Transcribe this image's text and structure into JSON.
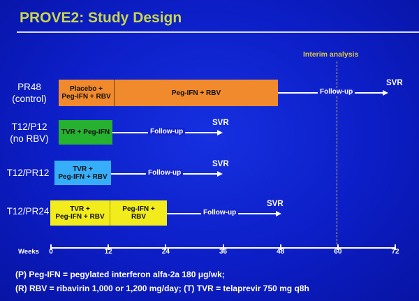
{
  "title": "PROVE2: Study Design",
  "interim_label": "Interim analysis",
  "axis": {
    "title": "Weeks",
    "ticks": [
      0,
      12,
      24,
      36,
      48,
      60,
      72
    ],
    "max": 72
  },
  "interim_week": 60,
  "arms": [
    {
      "label_line1": "PR48",
      "label_line2": "(control)",
      "segments": [
        {
          "text_line1": "Placebo +",
          "text_line2": "Peg-IFN + RBV",
          "start": 0,
          "end": 12,
          "color": "#f08a2c"
        },
        {
          "text_line1": "Peg-IFN + RBV",
          "text_line2": "",
          "start": 12,
          "end": 48,
          "color": "#f08a2c"
        }
      ],
      "follow_up": "Follow-up",
      "svr": "SVR"
    },
    {
      "label_line1": "T12/P12",
      "label_line2": "(no RBV)",
      "segments": [
        {
          "text_line1": "TVR + Peg-IFN",
          "text_line2": "",
          "start": 0,
          "end": 12,
          "color": "#26b22e"
        }
      ],
      "follow_up": "Follow-up",
      "svr": "SVR"
    },
    {
      "label_line1": "T12/PR12",
      "label_line2": "",
      "segments": [
        {
          "text_line1": "TVR +",
          "text_line2": "Peg-IFN + RBV",
          "start": 0,
          "end": 12,
          "color": "#36aefa"
        }
      ],
      "follow_up": "Follow-up",
      "svr": "SVR"
    },
    {
      "label_line1": "T12/PR24",
      "label_line2": "",
      "segments": [
        {
          "text_line1": "TVR +",
          "text_line2": "Peg-IFN + RBV",
          "start": 0,
          "end": 12,
          "color": "#f2ec1c"
        },
        {
          "text_line1": "Peg-IFN +",
          "text_line2": "RBV",
          "start": 12,
          "end": 24,
          "color": "#f2ec1c"
        }
      ],
      "follow_up": "Follow-up",
      "svr": "SVR"
    }
  ],
  "notes": {
    "line1": "(P) Peg-IFN = pegylated interferon alfa-2a 180 μg/wk;",
    "line2": "(R) RBV = ribavirin 1,000 or 1,200 mg/day; (T) TVR = telaprevir 750 mg q8h"
  }
}
